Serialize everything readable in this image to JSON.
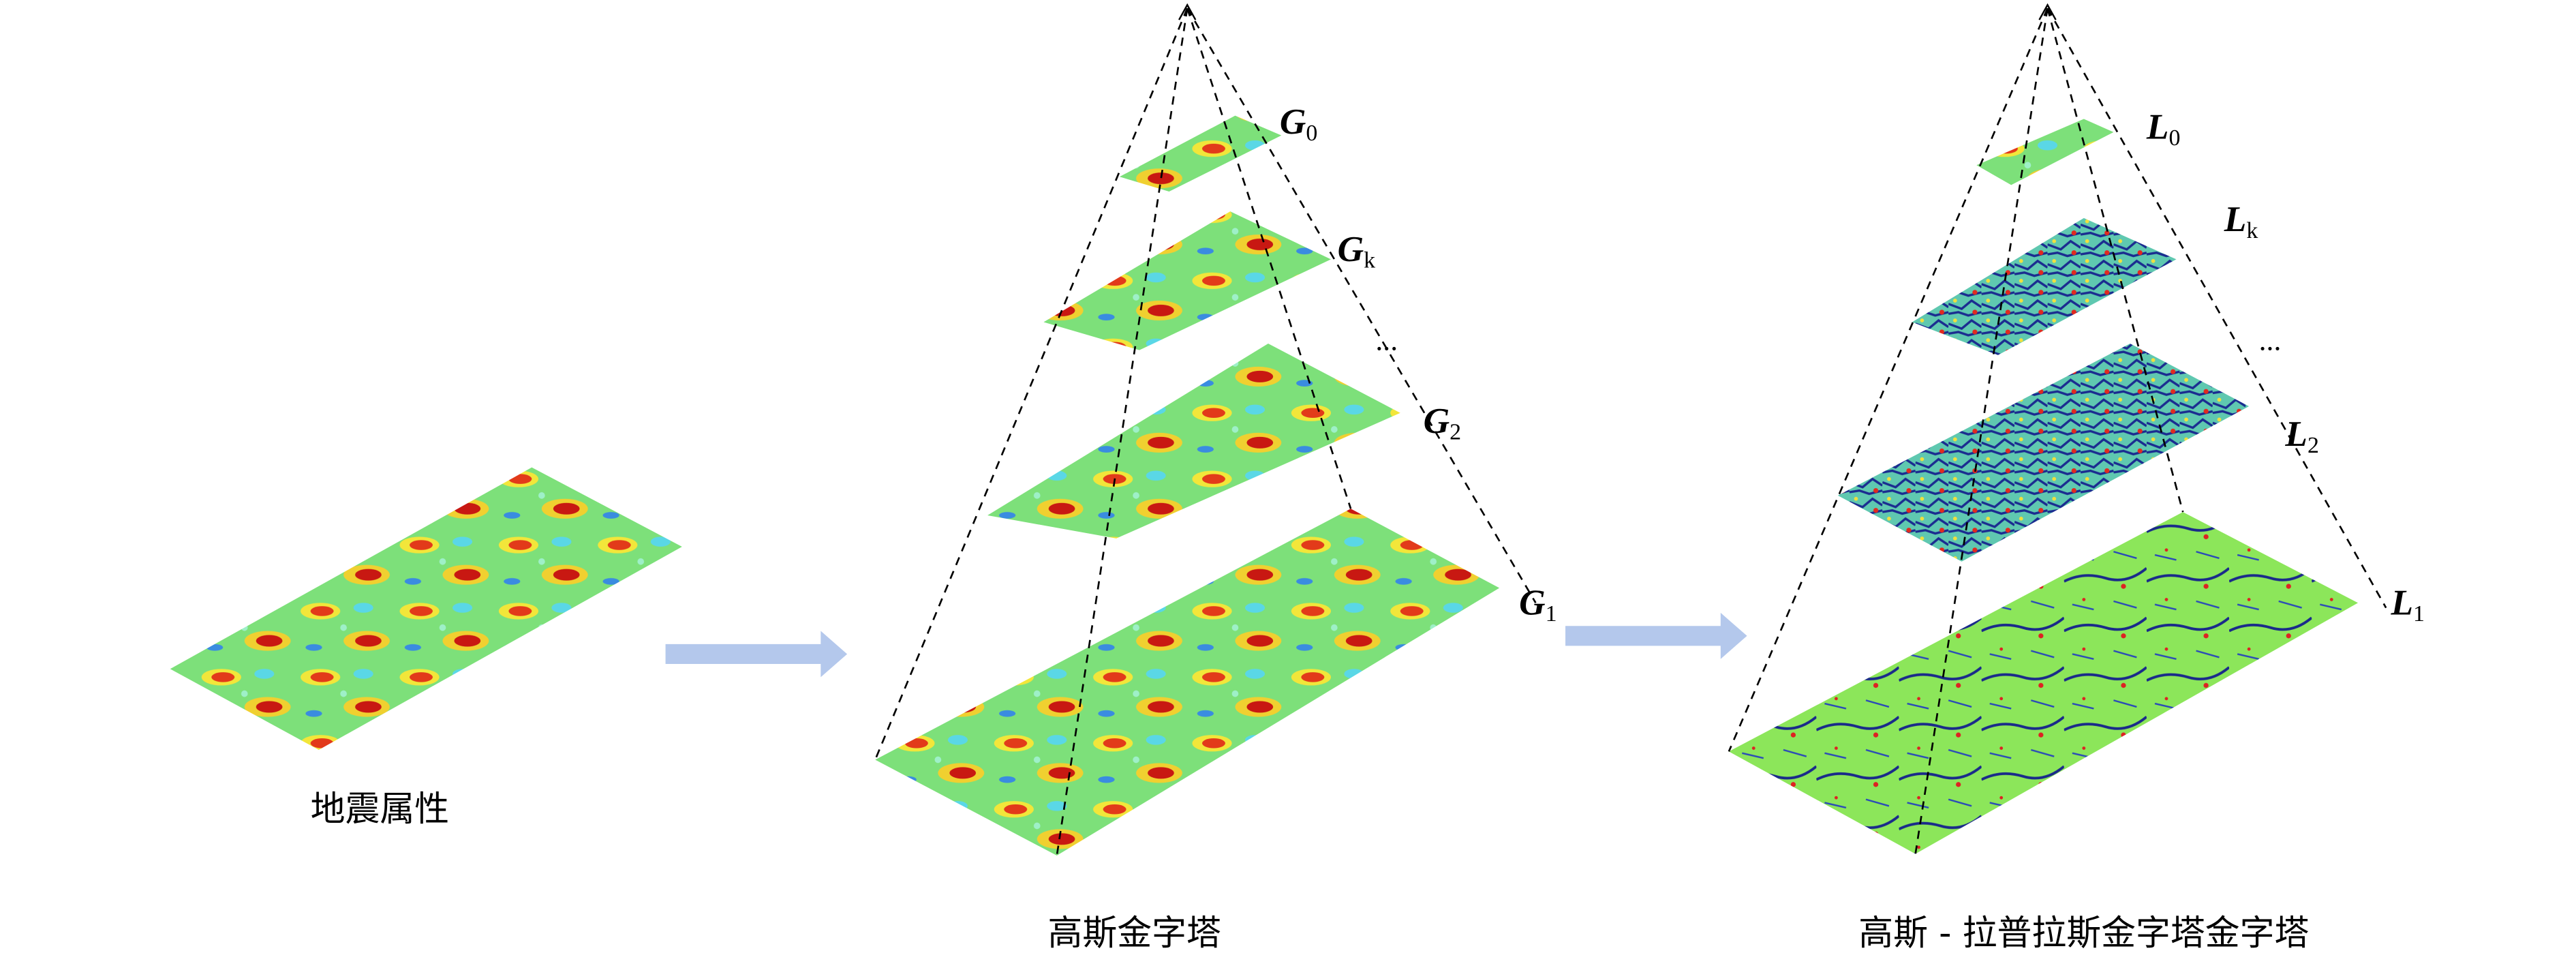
{
  "captions": {
    "attribute": "地震属性",
    "gaussian": "高斯金字塔",
    "laplacian": "高斯 - 拉普拉斯金字塔金字塔"
  },
  "gaussian_levels": [
    {
      "letter": "G",
      "subscript": "0"
    },
    {
      "letter": "G",
      "subscript": "k"
    },
    {
      "letter": "G",
      "subscript": "2"
    },
    {
      "letter": "G",
      "subscript": "1"
    }
  ],
  "gaussian_ellipsis": "...",
  "laplacian_levels": [
    {
      "letter": "L",
      "subscript": "0"
    },
    {
      "letter": "L",
      "subscript": "k"
    },
    {
      "letter": "L",
      "subscript": "2"
    },
    {
      "letter": "L",
      "subscript": "1"
    }
  ],
  "laplacian_ellipsis": "..."
}
